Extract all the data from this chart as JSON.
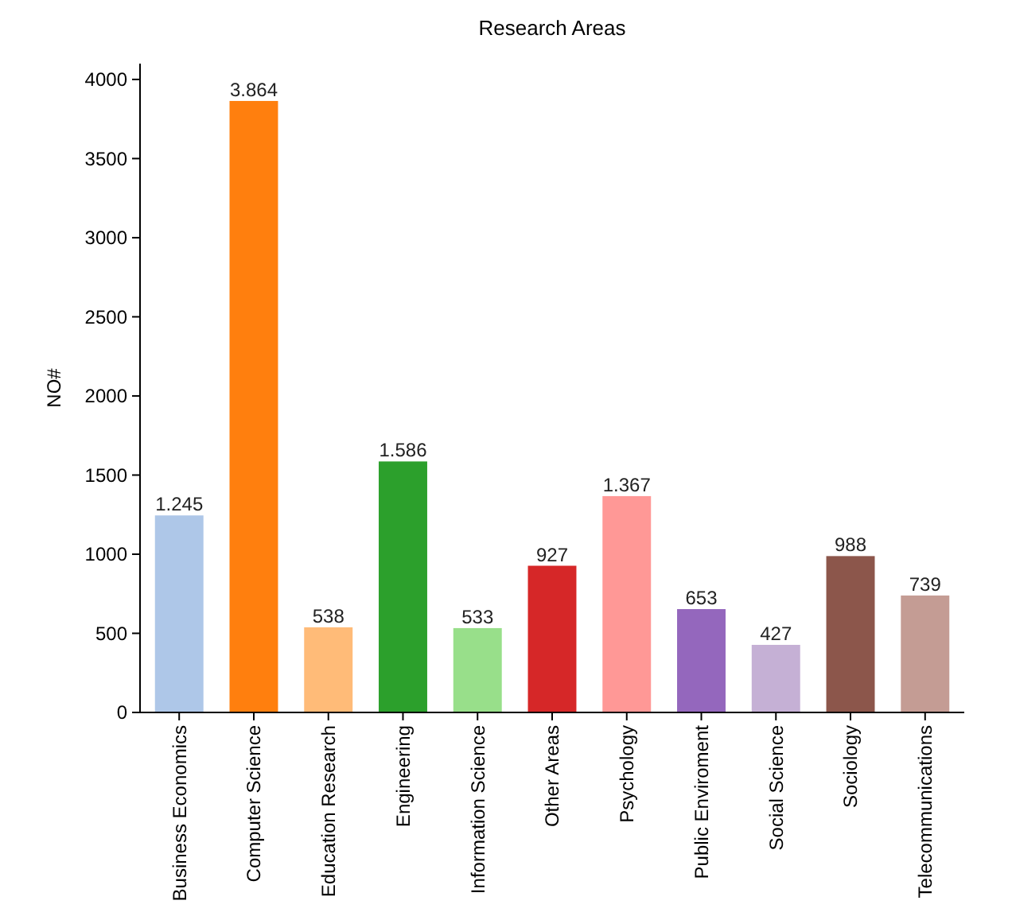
{
  "chart_data": {
    "type": "bar",
    "title": "Research Areas",
    "ylabel": "NO#",
    "categories": [
      "Business Economics",
      "Computer Science",
      "Education Research",
      "Engineering",
      "Information Science",
      "Other Areas",
      "Psychology",
      "Public Enviroment",
      "Social Science",
      "Sociology",
      "Telecommunications"
    ],
    "values": [
      1245,
      3864,
      538,
      1586,
      533,
      927,
      1367,
      653,
      427,
      988,
      739
    ],
    "value_labels": [
      "1.245",
      "3.864",
      "538",
      "1.586",
      "533",
      "927",
      "1.367",
      "653",
      "427",
      "988",
      "739"
    ],
    "colors": [
      "#aec7e8",
      "#ff7f0e",
      "#ffbb78",
      "#2ca02c",
      "#98df8a",
      "#d62728",
      "#ff9896",
      "#9467bd",
      "#c5b0d5",
      "#8c564b",
      "#c49c94"
    ],
    "ylim": [
      0,
      4100
    ],
    "yticks": [
      0,
      500,
      1000,
      1500,
      2000,
      2500,
      3000,
      3500,
      4000
    ],
    "grid": false
  }
}
